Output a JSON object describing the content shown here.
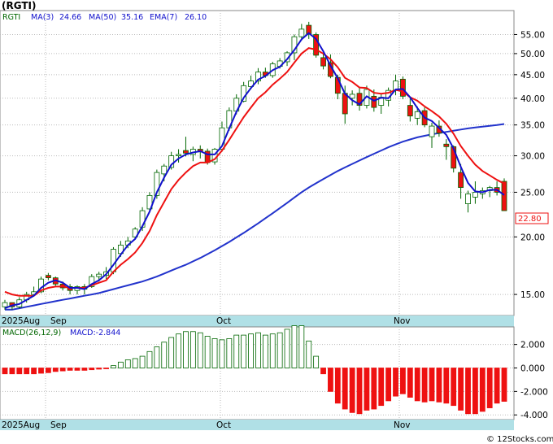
{
  "symbol_title": "(RGTI)",
  "legend": {
    "ticker": "RGTI",
    "ma3_label": "MA(3)",
    "ma3_value": "24.66",
    "ma50_label": "MA(50)",
    "ma50_value": "35.16",
    "ema7_label": "EMA(7)",
    "ema7_value": "26.10"
  },
  "last_price_label": "22.80",
  "macd": {
    "params_label": "MACD(26,12,9)",
    "value_label": "MACD:-2.844"
  },
  "watermark": "© 12Stocks.com",
  "colors": {
    "up": "#ffffff",
    "down": "#ee1111",
    "candle_outline": "#006600",
    "ma_fast": "#1111cc",
    "ma_slow": "#2233cc",
    "ema": "#ee1111",
    "axis_band": "#b0e0e6",
    "grid": "#bbbbbb"
  },
  "chart_data": [
    {
      "type": "candlestick",
      "title": "(RGTI)",
      "y_scale": "log",
      "ylim": [
        13.5,
        62
      ],
      "y_ticks": [
        "15.00",
        "20.00",
        "25.00",
        "30.00",
        "35.00",
        "40.00",
        "45.00",
        "50.00",
        "55.00"
      ],
      "x_tick_labels": [
        "2025Aug",
        "Sep",
        "Oct",
        "Nov"
      ],
      "grid": true,
      "ohlc": [
        [
          14.1,
          14.6,
          13.9,
          14.4
        ],
        [
          14.4,
          14.4,
          13.9,
          14.1
        ],
        [
          14.1,
          14.8,
          14.0,
          14.6
        ],
        [
          14.6,
          15.2,
          14.4,
          15.0
        ],
        [
          15.0,
          15.6,
          14.9,
          15.2
        ],
        [
          15.2,
          16.4,
          15.1,
          16.2
        ],
        [
          16.5,
          16.7,
          16.1,
          16.3
        ],
        [
          16.3,
          16.4,
          15.6,
          15.8
        ],
        [
          15.8,
          16.0,
          15.3,
          15.5
        ],
        [
          15.6,
          15.8,
          15.0,
          15.3
        ],
        [
          15.3,
          15.7,
          15.0,
          15.6
        ],
        [
          15.6,
          15.8,
          15.0,
          15.4
        ],
        [
          15.6,
          16.6,
          15.5,
          16.4
        ],
        [
          16.4,
          16.8,
          16.0,
          16.6
        ],
        [
          16.5,
          17.2,
          16.2,
          16.8
        ],
        [
          16.8,
          19.0,
          16.6,
          18.8
        ],
        [
          18.4,
          19.6,
          18.1,
          19.2
        ],
        [
          19.2,
          20.0,
          18.9,
          19.6
        ],
        [
          20.0,
          21.0,
          19.8,
          20.8
        ],
        [
          21.0,
          23.2,
          20.6,
          22.8
        ],
        [
          23.0,
          25.0,
          22.6,
          24.6
        ],
        [
          24.6,
          28.0,
          24.2,
          27.6
        ],
        [
          27.4,
          28.8,
          26.4,
          28.5
        ],
        [
          28.3,
          30.6,
          28.0,
          30.0
        ],
        [
          30.0,
          31.0,
          29.0,
          30.2
        ],
        [
          30.8,
          33.0,
          29.9,
          30.4
        ],
        [
          30.2,
          31.4,
          29.2,
          31.0
        ],
        [
          31.0,
          31.6,
          29.6,
          30.6
        ],
        [
          30.7,
          31.1,
          28.7,
          29.0
        ],
        [
          29.1,
          31.2,
          28.7,
          31.0
        ],
        [
          31.0,
          35.6,
          30.6,
          34.5
        ],
        [
          34.5,
          38.2,
          34.0,
          37.6
        ],
        [
          37.5,
          40.8,
          36.9,
          40.0
        ],
        [
          39.4,
          43.4,
          39.2,
          42.6
        ],
        [
          42.4,
          44.8,
          41.8,
          43.6
        ],
        [
          43.6,
          46.5,
          42.9,
          45.6
        ],
        [
          45.6,
          46.6,
          44.3,
          44.8
        ],
        [
          44.8,
          48.0,
          44.3,
          47.5
        ],
        [
          46.9,
          48.9,
          46.4,
          48.2
        ],
        [
          48.0,
          50.6,
          47.0,
          50.2
        ],
        [
          50.2,
          55.0,
          48.4,
          54.4
        ],
        [
          54.4,
          58.0,
          53.4,
          56.5
        ],
        [
          57.6,
          58.6,
          53.8,
          55.2
        ],
        [
          55.0,
          55.6,
          49.0,
          49.6
        ],
        [
          49.0,
          50.2,
          46.2,
          47.0
        ],
        [
          47.8,
          49.8,
          44.2,
          44.6
        ],
        [
          44.4,
          45.0,
          39.8,
          41.0
        ],
        [
          41.0,
          42.6,
          35.2,
          37.0
        ],
        [
          40.0,
          41.6,
          38.6,
          40.8
        ],
        [
          41.0,
          42.2,
          37.6,
          38.6
        ],
        [
          38.6,
          42.6,
          38.0,
          41.8
        ],
        [
          40.4,
          41.8,
          37.4,
          38.2
        ],
        [
          38.6,
          40.8,
          37.0,
          40.2
        ],
        [
          39.6,
          42.2,
          38.4,
          41.6
        ],
        [
          41.6,
          45.0,
          40.6,
          43.6
        ],
        [
          44.0,
          44.6,
          39.8,
          40.4
        ],
        [
          38.6,
          40.0,
          35.6,
          36.6
        ],
        [
          36.2,
          38.4,
          35.0,
          37.4
        ],
        [
          37.6,
          38.2,
          34.6,
          35.0
        ],
        [
          33.0,
          35.4,
          31.2,
          34.8
        ],
        [
          34.8,
          35.8,
          33.0,
          33.6
        ],
        [
          31.8,
          32.6,
          29.4,
          31.4
        ],
        [
          31.4,
          31.6,
          27.6,
          28.2
        ],
        [
          27.6,
          28.8,
          24.2,
          25.6
        ],
        [
          23.6,
          25.2,
          22.6,
          24.8
        ],
        [
          24.4,
          26.4,
          23.6,
          25.0
        ],
        [
          24.8,
          25.6,
          24.2,
          25.2
        ],
        [
          25.2,
          25.8,
          24.4,
          25.6
        ],
        [
          25.6,
          26.4,
          24.6,
          25.0
        ],
        [
          26.4,
          26.8,
          22.8,
          22.8
        ]
      ],
      "ma3": [
        14.0,
        14.2,
        14.3,
        14.6,
        14.9,
        15.5,
        15.9,
        16.1,
        15.9,
        15.5,
        15.5,
        15.4,
        15.8,
        16.1,
        16.6,
        17.4,
        18.3,
        19.2,
        19.8,
        21.1,
        22.7,
        25.0,
        26.9,
        28.7,
        29.6,
        30.2,
        30.5,
        30.7,
        30.2,
        30.2,
        31.5,
        34.4,
        37.4,
        40.1,
        42.1,
        43.9,
        44.7,
        46.0,
        46.8,
        48.6,
        50.9,
        53.7,
        55.4,
        53.8,
        50.6,
        47.1,
        44.2,
        40.9,
        39.6,
        38.8,
        40.4,
        39.5,
        40.1,
        40.0,
        41.8,
        41.9,
        40.2,
        38.1,
        36.3,
        35.7,
        34.5,
        33.3,
        31.1,
        28.4,
        26.2,
        25.1,
        25.0,
        25.3,
        25.3,
        24.66
      ],
      "ma50": [
        13.9,
        13.9,
        14.0,
        14.1,
        14.2,
        14.3,
        14.4,
        14.5,
        14.6,
        14.7,
        14.8,
        14.9,
        15.0,
        15.1,
        15.25,
        15.4,
        15.55,
        15.7,
        15.85,
        16.0,
        16.2,
        16.4,
        16.65,
        16.9,
        17.15,
        17.4,
        17.7,
        18.0,
        18.35,
        18.7,
        19.1,
        19.5,
        19.95,
        20.4,
        20.9,
        21.4,
        21.95,
        22.5,
        23.1,
        23.7,
        24.35,
        25.0,
        25.6,
        26.15,
        26.7,
        27.25,
        27.8,
        28.3,
        28.8,
        29.3,
        29.8,
        30.3,
        30.8,
        31.3,
        31.75,
        32.2,
        32.55,
        32.9,
        33.15,
        33.4,
        33.6,
        33.8,
        34.0,
        34.2,
        34.4,
        34.55,
        34.7,
        34.85,
        35.0,
        35.16
      ],
      "ema7": [
        15.2,
        15.0,
        14.9,
        14.9,
        14.9,
        15.3,
        15.5,
        15.6,
        15.6,
        15.5,
        15.5,
        15.5,
        15.7,
        15.9,
        16.1,
        16.8,
        17.4,
        17.9,
        18.5,
        19.4,
        20.6,
        22.3,
        23.8,
        25.4,
        26.6,
        27.6,
        28.5,
        29.0,
        29.0,
        29.5,
        30.8,
        32.5,
        34.4,
        36.4,
        38.2,
        40.0,
        41.2,
        42.8,
        44.1,
        45.6,
        47.8,
        50.0,
        51.4,
        51.0,
        50.0,
        48.6,
        46.7,
        44.3,
        43.4,
        42.2,
        42.1,
        41.1,
        40.9,
        41.1,
        41.7,
        41.4,
        40.2,
        39.5,
        38.4,
        37.5,
        36.5,
        35.2,
        33.5,
        31.5,
        30.0,
        28.7,
        27.8,
        27.2,
        26.6,
        26.1
      ]
    },
    {
      "type": "bar",
      "title": "MACD(26,12,9)",
      "ylim": [
        -4.4,
        3.5
      ],
      "y_ticks": [
        "2.000",
        "0.000",
        "-2.000",
        "-4.000"
      ],
      "x_tick_labels": [
        "2025Aug",
        "Sep",
        "Oct",
        "Nov"
      ],
      "values": [
        -0.5,
        -0.5,
        -0.5,
        -0.5,
        -0.5,
        -0.45,
        -0.4,
        -0.3,
        -0.25,
        -0.2,
        -0.2,
        -0.2,
        -0.15,
        -0.1,
        -0.05,
        0.2,
        0.5,
        0.7,
        0.8,
        1.0,
        1.4,
        1.8,
        2.2,
        2.6,
        2.9,
        3.1,
        3.1,
        3.0,
        2.7,
        2.5,
        2.4,
        2.5,
        2.8,
        2.8,
        2.9,
        3.0,
        2.8,
        2.9,
        3.0,
        3.3,
        3.6,
        3.6,
        2.3,
        1.0,
        -0.5,
        -2.0,
        -3.0,
        -3.5,
        -3.8,
        -3.9,
        -3.6,
        -3.5,
        -3.2,
        -2.8,
        -2.4,
        -2.2,
        -2.5,
        -2.8,
        -2.9,
        -2.8,
        -2.9,
        -3.0,
        -3.2,
        -3.6,
        -3.9,
        -3.9,
        -3.7,
        -3.4,
        -3.0,
        -2.844
      ]
    }
  ]
}
